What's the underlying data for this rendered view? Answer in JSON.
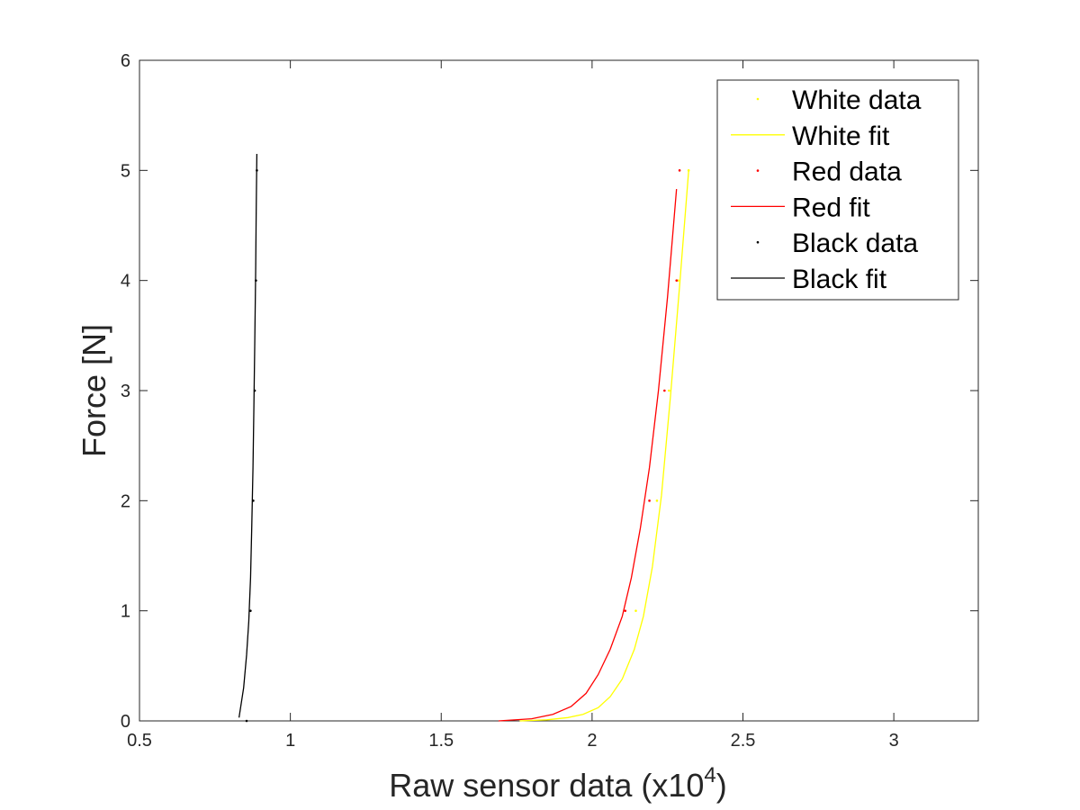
{
  "chart_data": {
    "type": "line",
    "title": "",
    "xlabel": "Raw sensor data (x10",
    "xlabel_exponent": "4",
    "xlabel_suffix": ")",
    "ylabel": "Force [N]",
    "xlim": [
      0.5,
      3.28
    ],
    "ylim": [
      0,
      6
    ],
    "xticks": [
      0.5,
      1,
      1.5,
      2,
      2.5,
      3
    ],
    "xtick_labels": [
      "0.5",
      "1",
      "1.5",
      "2",
      "2.5",
      "3"
    ],
    "yticks": [
      0,
      1,
      2,
      3,
      4,
      5,
      6
    ],
    "ytick_labels": [
      "0",
      "1",
      "2",
      "3",
      "4",
      "5",
      "6"
    ],
    "grid": false,
    "box": true,
    "legend_position": "top-right",
    "series": [
      {
        "name": "White data",
        "kind": "points",
        "color": "#ffff00",
        "x": [
          2.145,
          2.215,
          2.255,
          2.285,
          2.32
        ],
        "y": [
          1,
          2,
          3,
          4,
          5
        ]
      },
      {
        "name": "White fit",
        "kind": "line",
        "color": "#ffff00",
        "x": [
          1.76,
          1.85,
          1.92,
          1.97,
          2.02,
          2.06,
          2.1,
          2.14,
          2.17,
          2.2,
          2.23,
          2.26,
          2.29,
          2.32
        ],
        "y": [
          0.0,
          0.01,
          0.03,
          0.06,
          0.12,
          0.22,
          0.38,
          0.65,
          0.95,
          1.4,
          2.05,
          2.95,
          3.95,
          5.0
        ]
      },
      {
        "name": "Red data",
        "kind": "points",
        "color": "#ff0000",
        "x": [
          2.11,
          2.19,
          2.24,
          2.28,
          2.29
        ],
        "y": [
          1,
          2,
          3,
          4,
          5
        ]
      },
      {
        "name": "Red fit",
        "kind": "line",
        "color": "#ff0000",
        "x": [
          1.69,
          1.8,
          1.87,
          1.93,
          1.98,
          2.02,
          2.06,
          2.1,
          2.13,
          2.16,
          2.19,
          2.22,
          2.25,
          2.28
        ],
        "y": [
          0.0,
          0.02,
          0.06,
          0.13,
          0.25,
          0.42,
          0.65,
          0.95,
          1.3,
          1.75,
          2.3,
          3.0,
          3.85,
          4.83
        ]
      },
      {
        "name": "Black data",
        "kind": "points",
        "color": "#000000",
        "x": [
          0.855,
          0.868,
          0.877,
          0.882,
          0.886,
          0.889
        ],
        "y": [
          0,
          1,
          2,
          3,
          4,
          5
        ]
      },
      {
        "name": "Black fit",
        "kind": "line",
        "color": "#000000",
        "x": [
          0.83,
          0.845,
          0.855,
          0.862,
          0.868,
          0.872,
          0.876,
          0.879,
          0.882,
          0.885,
          0.887,
          0.889
        ],
        "y": [
          0.03,
          0.3,
          0.6,
          0.9,
          1.3,
          1.75,
          2.3,
          2.85,
          3.45,
          4.1,
          4.65,
          5.15
        ]
      }
    ]
  }
}
